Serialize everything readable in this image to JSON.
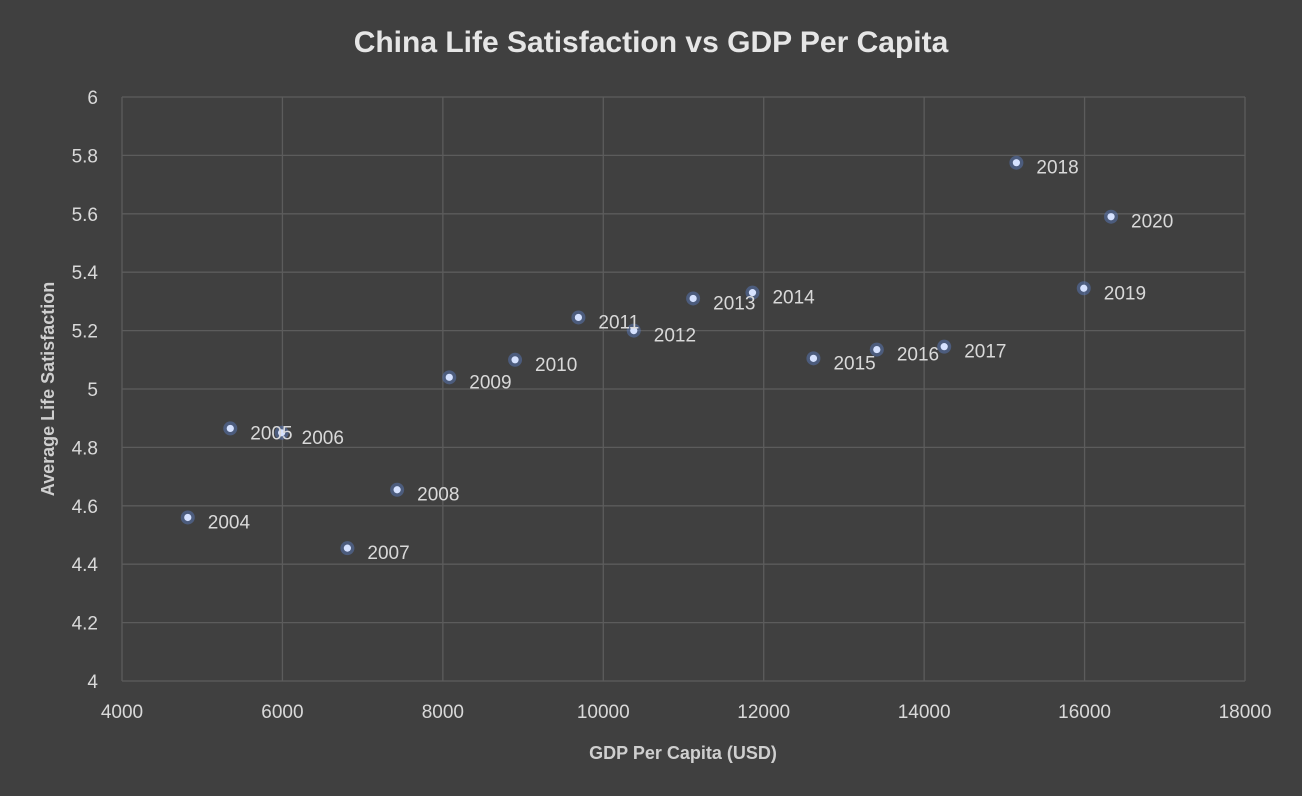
{
  "chart_data": {
    "type": "scatter",
    "title": "China Life Satisfaction vs GDP Per Capita",
    "xlabel": "GDP Per Capita (USD)",
    "ylabel": "Average Life Satisfaction",
    "xlim": [
      4000,
      18000
    ],
    "ylim": [
      4,
      6
    ],
    "x_ticks": [
      "4000",
      "6000",
      "8000",
      "10000",
      "12000",
      "14000",
      "16000",
      "18000"
    ],
    "y_ticks": [
      "4",
      "4.2",
      "4.4",
      "4.6",
      "4.8",
      "5",
      "5.2",
      "5.4",
      "5.6",
      "5.8",
      "6"
    ],
    "grid": true,
    "legend": "none",
    "marker_color": "#5b7fc8",
    "points": [
      {
        "label": "2004",
        "x": 4820,
        "y": 4.56
      },
      {
        "label": "2005",
        "x": 5350,
        "y": 4.865
      },
      {
        "label": "2006",
        "x": 5990,
        "y": 4.85
      },
      {
        "label": "2007",
        "x": 6810,
        "y": 4.455
      },
      {
        "label": "2008",
        "x": 7430,
        "y": 4.655
      },
      {
        "label": "2009",
        "x": 8080,
        "y": 5.04
      },
      {
        "label": "2010",
        "x": 8900,
        "y": 5.1
      },
      {
        "label": "2011",
        "x": 9690,
        "y": 5.245
      },
      {
        "label": "2012",
        "x": 10380,
        "y": 5.2
      },
      {
        "label": "2013",
        "x": 11120,
        "y": 5.31
      },
      {
        "label": "2014",
        "x": 11860,
        "y": 5.33
      },
      {
        "label": "2015",
        "x": 12620,
        "y": 5.105
      },
      {
        "label": "2016",
        "x": 13410,
        "y": 5.135
      },
      {
        "label": "2017",
        "x": 14250,
        "y": 5.145
      },
      {
        "label": "2018",
        "x": 15150,
        "y": 5.775
      },
      {
        "label": "2019",
        "x": 15990,
        "y": 5.345
      },
      {
        "label": "2020",
        "x": 16330,
        "y": 5.59
      }
    ]
  }
}
